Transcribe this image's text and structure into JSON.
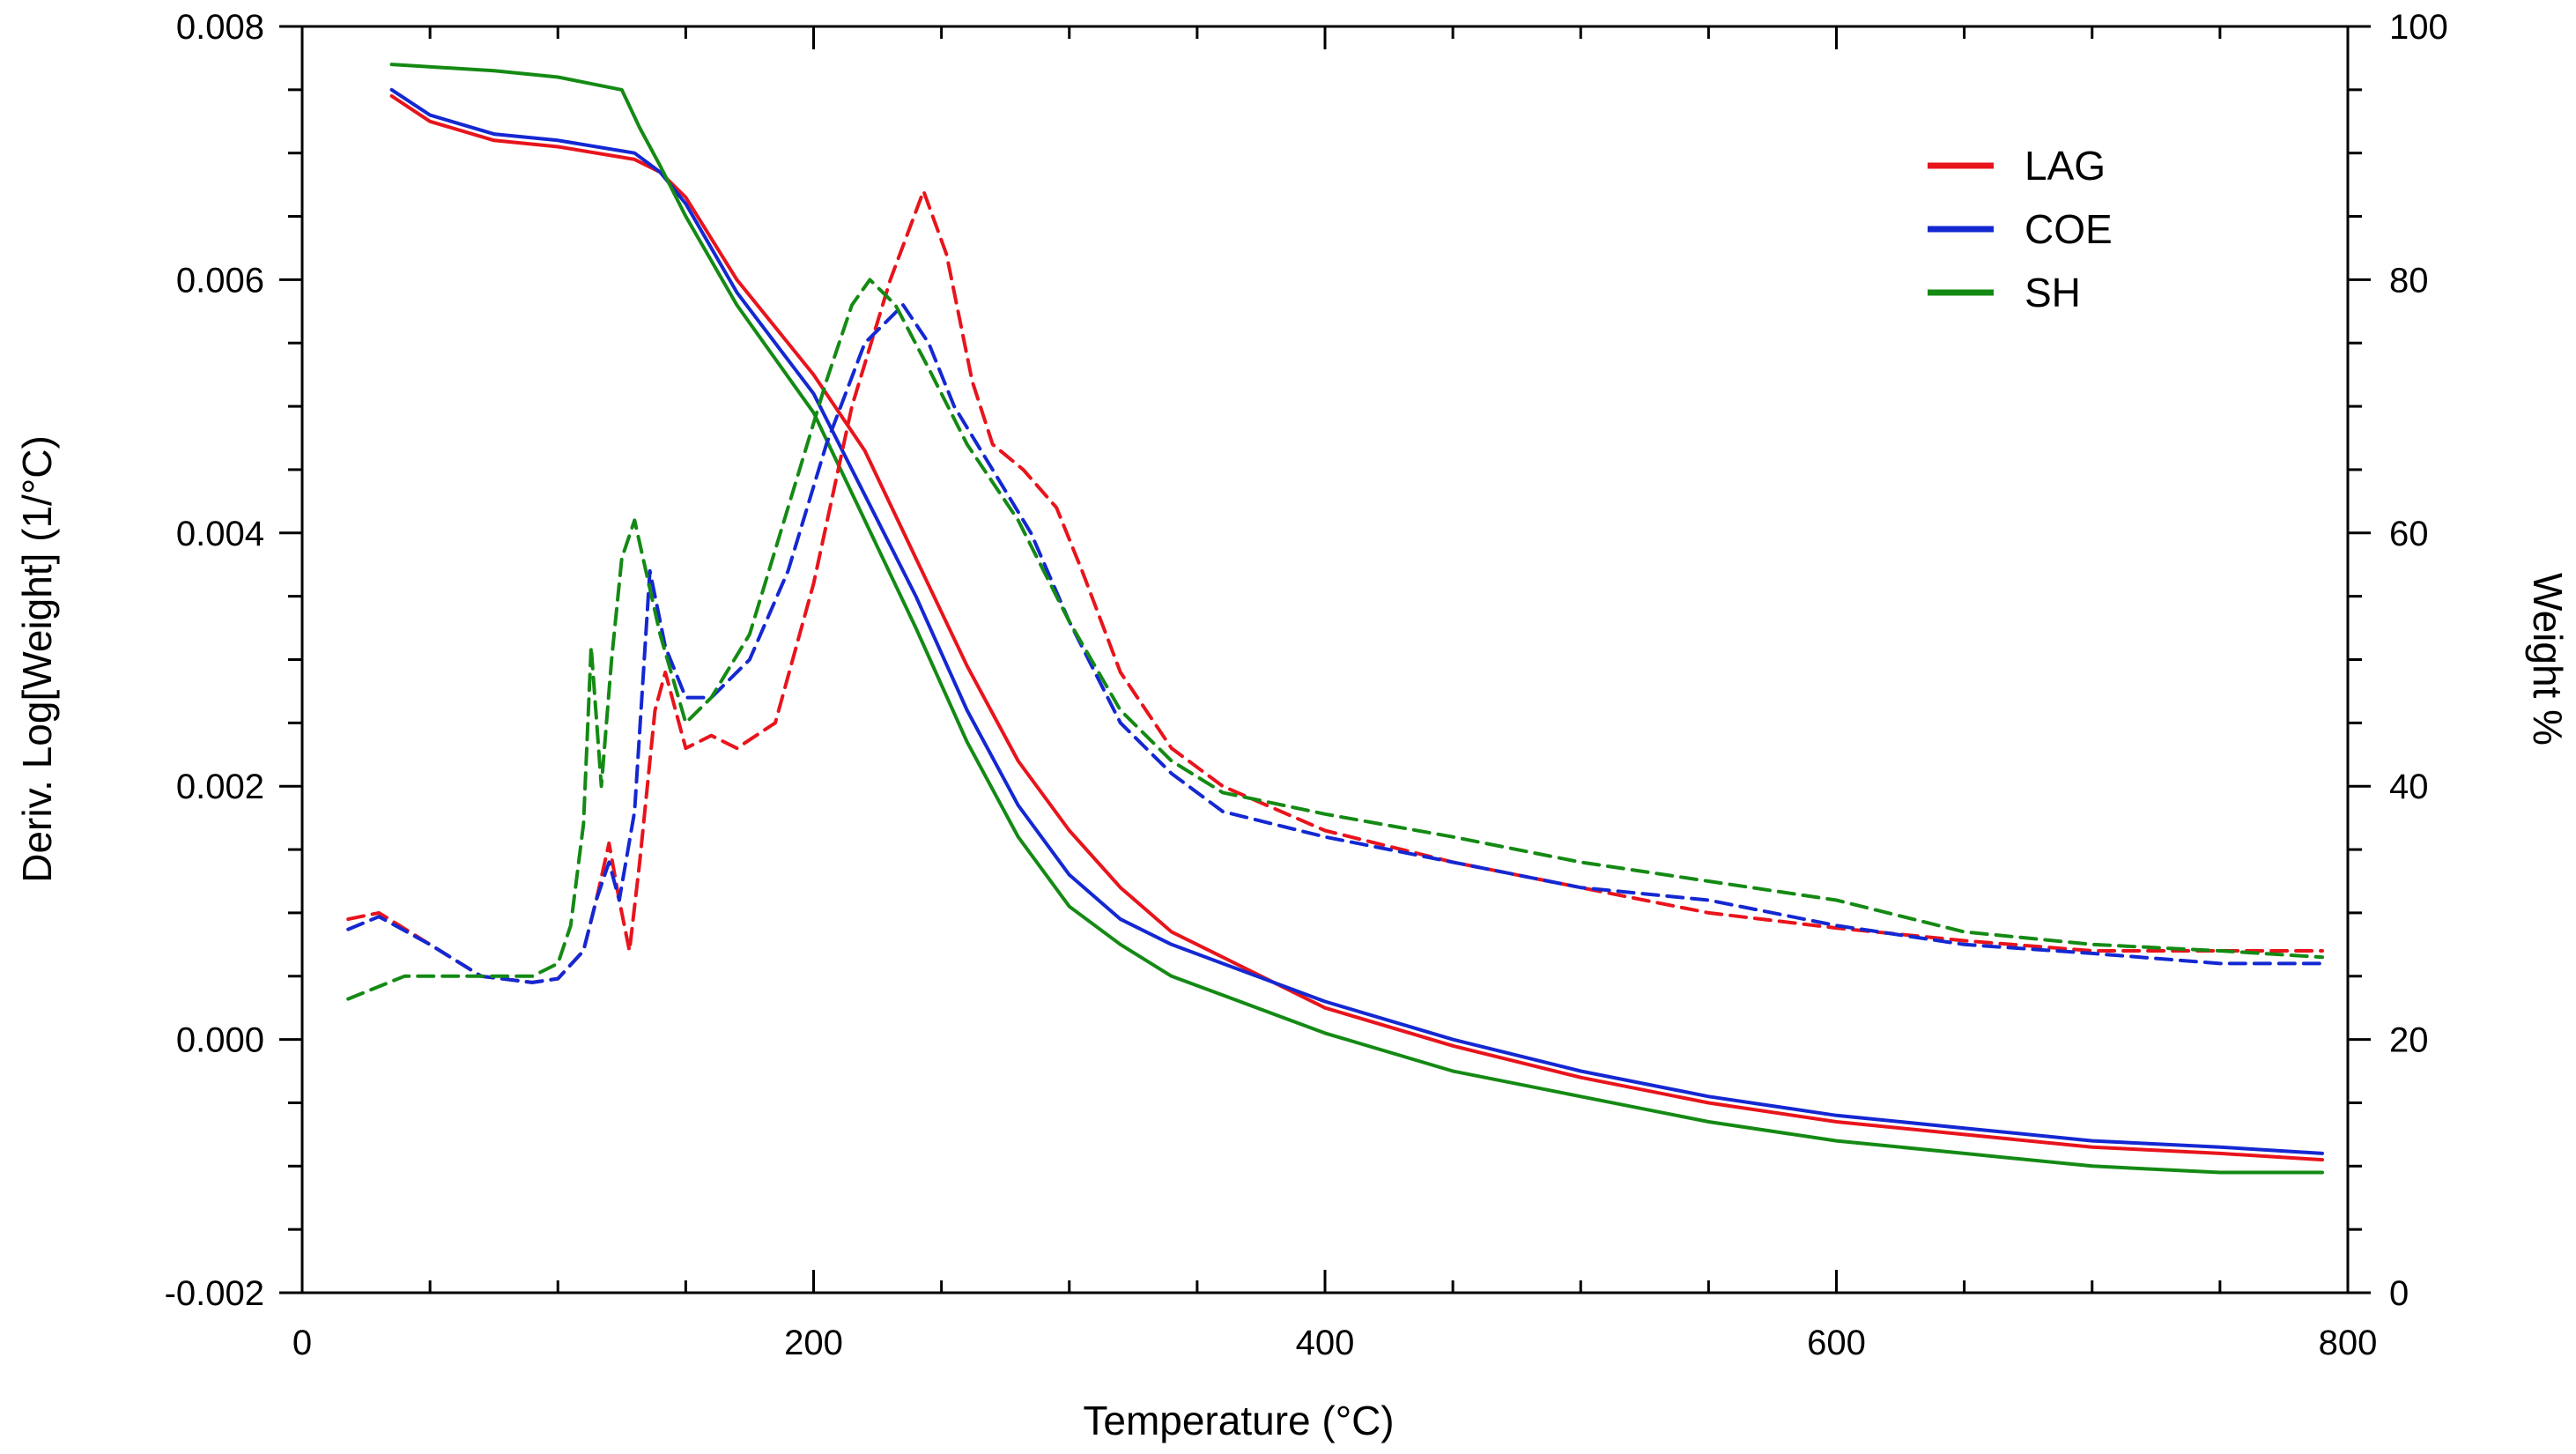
{
  "chart_data": {
    "type": "line",
    "title": "",
    "xlabel": "Temperature (°C)",
    "ylabel_left": "Deriv. Log[Weight] (1/°C)",
    "ylabel_right": "Weight %",
    "xlim": [
      0,
      800
    ],
    "ylim_left": [
      -0.002,
      0.008
    ],
    "ylim_right": [
      0,
      100
    ],
    "x_ticks": [
      "0",
      "200",
      "400",
      "600",
      "800"
    ],
    "y_left_ticks": [
      "-0.002",
      "0.000",
      "0.002",
      "0.004",
      "0.006",
      "0.008"
    ],
    "y_right_ticks": [
      "0",
      "20",
      "40",
      "60",
      "80",
      "100"
    ],
    "legend_position": "top-right",
    "colors": {
      "LAG": "#e8141c",
      "COE": "#1428d2",
      "SH": "#148a14"
    },
    "legend": [
      "LAG",
      "COE",
      "SH"
    ],
    "series": [
      {
        "name": "LAG",
        "kind": "weight",
        "axis": "right",
        "style": "solid",
        "x": [
          35,
          50,
          75,
          100,
          130,
          140,
          150,
          170,
          200,
          220,
          240,
          260,
          280,
          300,
          320,
          340,
          360,
          400,
          450,
          500,
          550,
          600,
          650,
          700,
          750,
          790
        ],
        "y": [
          94.5,
          92.5,
          91,
          90.5,
          89.5,
          88.5,
          86.5,
          80,
          72.5,
          66.5,
          58,
          49.5,
          42,
          36.5,
          32,
          28.5,
          26.5,
          22.5,
          19.5,
          17,
          15,
          13.5,
          12.5,
          11.5,
          11,
          10.5
        ]
      },
      {
        "name": "COE",
        "kind": "weight",
        "axis": "right",
        "style": "solid",
        "x": [
          35,
          50,
          75,
          100,
          130,
          140,
          150,
          170,
          200,
          220,
          240,
          260,
          280,
          300,
          320,
          340,
          360,
          400,
          450,
          500,
          550,
          600,
          650,
          700,
          750,
          790
        ],
        "y": [
          95,
          93,
          91.5,
          91,
          90,
          88.5,
          86,
          79,
          71,
          63,
          55,
          46,
          38.5,
          33,
          29.5,
          27.5,
          26,
          23,
          20,
          17.5,
          15.5,
          14,
          13,
          12,
          11.5,
          11
        ]
      },
      {
        "name": "SH",
        "kind": "weight",
        "axis": "right",
        "style": "solid",
        "x": [
          35,
          75,
          100,
          125,
          132,
          140,
          150,
          170,
          200,
          220,
          240,
          260,
          280,
          300,
          320,
          340,
          360,
          400,
          450,
          500,
          550,
          600,
          650,
          700,
          750,
          790
        ],
        "y": [
          97,
          96.5,
          96,
          95,
          92,
          89,
          85,
          78,
          69.5,
          61,
          52.5,
          43.5,
          36,
          30.5,
          27.5,
          25,
          23.5,
          20.5,
          17.5,
          15.5,
          13.5,
          12,
          11,
          10,
          9.5,
          9.5
        ]
      },
      {
        "name": "LAG",
        "kind": "derivative",
        "axis": "left",
        "style": "dashed",
        "x": [
          18,
          30,
          50,
          70,
          90,
          100,
          110,
          115,
          120,
          124,
          128,
          132,
          138,
          142,
          150,
          160,
          170,
          185,
          200,
          215,
          230,
          243,
          252,
          262,
          270,
          282,
          295,
          305,
          320,
          340,
          360,
          400,
          450,
          500,
          550,
          600,
          650,
          700,
          750,
          790
        ],
        "y": [
          0.00095,
          0.001,
          0.00075,
          0.0005,
          0.00045,
          0.00048,
          0.0007,
          0.0011,
          0.00155,
          0.0011,
          0.0007,
          0.0014,
          0.0026,
          0.0029,
          0.0023,
          0.0024,
          0.0023,
          0.0025,
          0.0036,
          0.005,
          0.006,
          0.0067,
          0.0062,
          0.0052,
          0.0047,
          0.0045,
          0.0042,
          0.0037,
          0.0029,
          0.0023,
          0.002,
          0.00165,
          0.0014,
          0.0012,
          0.001,
          0.00088,
          0.00078,
          0.0007,
          0.0007,
          0.0007
        ]
      },
      {
        "name": "COE",
        "kind": "derivative",
        "axis": "left",
        "style": "dashed",
        "x": [
          18,
          30,
          50,
          70,
          90,
          100,
          110,
          115,
          120,
          124,
          130,
          136,
          142,
          150,
          160,
          175,
          190,
          205,
          220,
          235,
          245,
          255,
          270,
          285,
          300,
          320,
          340,
          360,
          400,
          450,
          500,
          550,
          600,
          650,
          700,
          750,
          790
        ],
        "y": [
          0.00087,
          0.00097,
          0.00075,
          0.0005,
          0.00045,
          0.00048,
          0.0007,
          0.0011,
          0.0014,
          0.0011,
          0.0018,
          0.0037,
          0.0031,
          0.0027,
          0.0027,
          0.003,
          0.0037,
          0.0047,
          0.0055,
          0.0058,
          0.0055,
          0.005,
          0.0045,
          0.004,
          0.0033,
          0.0025,
          0.0021,
          0.0018,
          0.0016,
          0.0014,
          0.0012,
          0.0011,
          0.0009,
          0.00075,
          0.00068,
          0.0006,
          0.0006
        ]
      },
      {
        "name": "SH",
        "kind": "derivative",
        "axis": "left",
        "style": "dashed",
        "x": [
          18,
          40,
          70,
          90,
          100,
          105,
          110,
          113,
          117,
          121,
          125,
          130,
          140,
          150,
          160,
          175,
          190,
          205,
          215,
          222,
          232,
          245,
          260,
          280,
          300,
          320,
          340,
          360,
          400,
          450,
          500,
          550,
          600,
          650,
          700,
          750,
          790
        ],
        "y": [
          0.00032,
          0.0005,
          0.0005,
          0.0005,
          0.0006,
          0.0009,
          0.0017,
          0.0031,
          0.002,
          0.003,
          0.0038,
          0.0041,
          0.0032,
          0.0025,
          0.0027,
          0.0032,
          0.0042,
          0.0052,
          0.0058,
          0.006,
          0.0058,
          0.0053,
          0.0047,
          0.0041,
          0.0033,
          0.0026,
          0.0022,
          0.00195,
          0.00178,
          0.0016,
          0.0014,
          0.00125,
          0.0011,
          0.00085,
          0.00075,
          0.0007,
          0.00065
        ]
      }
    ]
  }
}
